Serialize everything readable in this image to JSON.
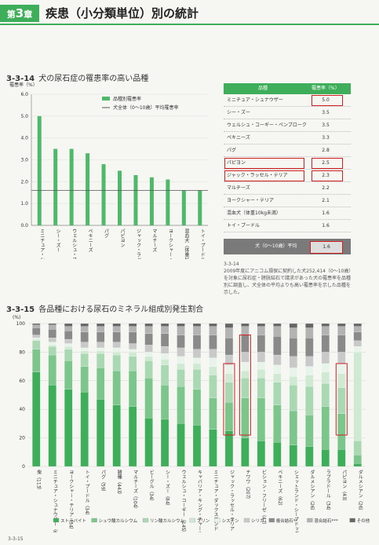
{
  "header": {
    "chapter_prefix": "第",
    "chapter_number": "3",
    "chapter_suffix": "章",
    "title": "疾患（小分類単位）別の統計"
  },
  "fig1": {
    "number": "3-3-14",
    "title": "犬の尿石症の罹患率の高い品種",
    "note_number": "3-3-14",
    "note_text_lines": [
      "2009年度にアニコム損保に契約した犬252,414（0〜10歳）",
      "を対象に尿石症・膀胱結石で請求があった犬の罹患率を品種",
      "別に調査し、犬全体の平均よりも高い罹患率を示した品種を",
      "示した。"
    ]
  },
  "chart1": {
    "type": "bar",
    "ylabel": "罹患率（%）",
    "ylim": [
      0,
      6
    ],
    "yticks": [
      "0.0",
      "1.0",
      "2.0",
      "3.0",
      "4.0",
      "5.0",
      "6.0"
    ],
    "categories": [
      "ミニチュア・シュナウザー",
      "シー・ズー",
      "ウェルシュ・コーギー・ペンブローク",
      "ペキニーズ",
      "パグ",
      "パピヨン",
      "ジャック・ラッセル・テリア",
      "マルチーズ",
      "ヨークシャー・テリア",
      "混血犬（体重10kg未満）",
      "トイ・プードル"
    ],
    "values": [
      5.0,
      3.5,
      3.5,
      3.3,
      2.8,
      2.5,
      2.3,
      2.2,
      2.1,
      1.6,
      1.6
    ],
    "average": 1.6,
    "legend": [
      "品種別罹患率",
      "犬全体（0〜10歳）平均罹患率"
    ],
    "colors": {
      "bar": "#4fb86a",
      "line": "#555555"
    }
  },
  "table1": {
    "headers": [
      "品種",
      "罹患率（%）"
    ],
    "rows": [
      {
        "name": "ミニチュア・シュナウザー",
        "value": "5.0",
        "boxed": true
      },
      {
        "name": "シー・ズー",
        "value": "3.5",
        "boxed": false
      },
      {
        "name": "ウェルシュ・コーギー・ペンブローク",
        "value": "3.5",
        "boxed": false
      },
      {
        "name": "ペキニーズ",
        "value": "3.3",
        "boxed": false
      },
      {
        "name": "パグ",
        "value": "2.8",
        "boxed": false
      },
      {
        "name": "パピヨン",
        "value": "2.5",
        "boxed": true
      },
      {
        "name": "ジャック・ラッセル・テリア",
        "value": "2.3",
        "boxed": true
      },
      {
        "name": "マルチーズ",
        "value": "2.2",
        "boxed": false
      },
      {
        "name": "ヨークシャー・テリア",
        "value": "2.1",
        "boxed": false
      },
      {
        "name": "混血犬（体重10kg未満）",
        "value": "1.6",
        "boxed": false
      },
      {
        "name": "トイ・プードル",
        "value": "1.6",
        "boxed": false
      }
    ],
    "average_label": "犬（0〜10歳）平均",
    "average_value": "1.6"
  },
  "fig2": {
    "number": "3-3-15",
    "title": "各品種における尿石のミネラル組成別発生割合",
    "footer": "3-3-15"
  },
  "chart_data": [
    {
      "type": "bar",
      "title": "犬の尿石症の罹患率の高い品種",
      "ylabel": "罹患率（%）",
      "ylim": [
        0,
        6
      ],
      "categories": [
        "ミニチュア・シュナウザー",
        "シー・ズー",
        "ウェルシュ・コーギー・ペンブローク",
        "ペキニーズ",
        "パグ",
        "パピヨン",
        "ジャック・ラッセル・テリア",
        "マルチーズ",
        "ヨークシャー・テリア",
        "混血犬（体重10kg未満）",
        "トイ・プードル"
      ],
      "values": [
        5.0,
        3.5,
        3.5,
        3.3,
        2.8,
        2.5,
        2.3,
        2.2,
        2.1,
        1.6,
        1.6
      ]
    },
    {
      "type": "bar",
      "stacked": true,
      "title": "各品種における尿石のミネラル組成別発生割合",
      "ylabel": "(%)",
      "ylim": [
        0,
        100
      ],
      "yticks": [
        "0",
        "20",
        "40",
        "60",
        "80",
        "100"
      ],
      "categories": [
        "柴（113）",
        "ミニチュア・シュナウザー（62）",
        "ヨークシャー・テリア（34）",
        "トイ・プードル（34）",
        "パグ（59）",
        "雑種（443）",
        "マルチーズ（104）",
        "ビーグル（34）",
        "シー・ズー（84）",
        "ウェルシュ・コーギー（145）",
        "キャバリア・キング・チャールズ（84）",
        "ミニチュア・ダックスフンド（189）",
        "ジャック・ラッセル・テリア（193）",
        "チワワ（207）",
        "ビション・フリーゼ（47）",
        "ペキニーズ（62）",
        "シェットランド・シープドッグ（70）",
        "ダルメシアン（26）",
        "ラブラドール（34）",
        "パピヨン（43）",
        "ダルメシアン（26）"
      ],
      "series": [
        {
          "name": "ストラバイト",
          "values": [
            66,
            57,
            54,
            52,
            47,
            43,
            42,
            34,
            33,
            30,
            29,
            26,
            25,
            20,
            18,
            17,
            15,
            14,
            12,
            12,
            2
          ]
        },
        {
          "name": "シュウ酸カルシウム",
          "values": [
            16,
            21,
            20,
            18,
            22,
            24,
            25,
            28,
            24,
            26,
            25,
            22,
            20,
            28,
            30,
            26,
            24,
            22,
            30,
            25,
            6
          ]
        },
        {
          "name": "リン酸カルシウム",
          "values": [
            6,
            6,
            8,
            9,
            10,
            11,
            10,
            12,
            14,
            12,
            14,
            16,
            14,
            14,
            14,
            16,
            18,
            20,
            16,
            18,
            10
          ]
        },
        {
          "name": "プリン",
          "values": [
            1,
            1,
            2,
            2,
            2,
            2,
            3,
            3,
            4,
            4,
            4,
            6,
            6,
            5,
            6,
            6,
            6,
            8,
            8,
            10,
            62
          ]
        },
        {
          "name": "シスチン",
          "values": [
            1,
            2,
            2,
            2,
            2,
            3,
            2,
            3,
            4,
            5,
            4,
            6,
            6,
            6,
            5,
            6,
            6,
            6,
            6,
            7,
            4
          ]
        },
        {
          "name": "シリカ",
          "values": [
            2,
            3,
            3,
            4,
            4,
            4,
            4,
            5,
            5,
            6,
            6,
            6,
            7,
            7,
            7,
            7,
            8,
            7,
            8,
            8,
            4
          ]
        },
        {
          "name": "複合結石",
          "values": [
            5,
            6,
            6,
            7,
            7,
            7,
            8,
            8,
            9,
            9,
            10,
            10,
            12,
            12,
            12,
            13,
            13,
            13,
            12,
            12,
            6
          ]
        },
        {
          "name": "混合結石",
          "values": [
            2,
            3,
            3,
            4,
            4,
            4,
            4,
            5,
            5,
            6,
            6,
            6,
            7,
            6,
            6,
            7,
            7,
            7,
            6,
            6,
            4
          ]
        },
        {
          "name": "その他",
          "values": [
            1,
            1,
            2,
            2,
            2,
            2,
            2,
            2,
            2,
            2,
            2,
            2,
            3,
            2,
            2,
            2,
            3,
            3,
            2,
            2,
            2
          ]
        }
      ],
      "colors": [
        "#3fae5a",
        "#7cc58b",
        "#a9d8b2",
        "#cfe9d3",
        "#e8f4ea",
        "#c9c9c9",
        "#8a8a8a",
        "#b3b3b3",
        "#666666"
      ]
    }
  ],
  "chart2": {
    "legend": [
      "ストラバイト",
      "シュウ酸カルシウム",
      "リン酸カルシウム",
      "プリン",
      "シスチン",
      "シリカ",
      "複合結石**",
      "混合結石***",
      "その他"
    ]
  }
}
